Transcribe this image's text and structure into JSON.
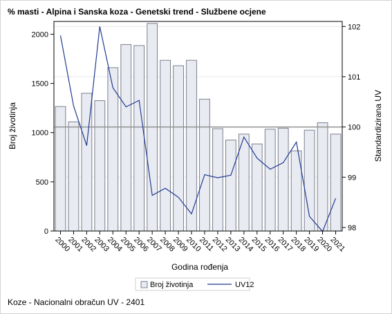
{
  "title": "% masti - Alpina i Sanska koza - Genetski trend - Službene ocjene",
  "footnote": "Koze - Nacionalni obračun UV - 2401",
  "colors": {
    "bar_fill": "#e9ebf2",
    "bar_stroke": "#7c7f8c",
    "line": "#1f3a93",
    "refline": "#909090",
    "grid": "#e6e6e6"
  },
  "chart_data": {
    "type": "bar",
    "categories": [
      "2000",
      "2001",
      "2002",
      "2003",
      "2004",
      "2005",
      "2006",
      "2007",
      "2008",
      "2009",
      "2010",
      "2011",
      "2012",
      "2013",
      "2014",
      "2015",
      "2016",
      "2017",
      "2018",
      "2019",
      "2020",
      "2021"
    ],
    "xlabel": "Godina rođenja",
    "ylabel": "Broj životinja",
    "y2label": "Standardizirana UV",
    "ylim": [
      0,
      2130
    ],
    "yticks": [
      0,
      500,
      1000,
      1500,
      2000
    ],
    "y2lim": [
      97.93,
      102.1
    ],
    "y2ticks": [
      98,
      99,
      100,
      101,
      102
    ],
    "reference_line_y2": 100,
    "series": [
      {
        "name": "Broj životinja",
        "type": "bar",
        "axis": "left",
        "values": [
          1265,
          1110,
          1400,
          1325,
          1660,
          1895,
          1885,
          2110,
          1735,
          1680,
          1735,
          1340,
          1040,
          925,
          985,
          885,
          1035,
          1045,
          815,
          1025,
          1100,
          985
        ]
      },
      {
        "name": "UV12",
        "type": "line",
        "axis": "right",
        "values": [
          101.82,
          100.42,
          99.63,
          102.0,
          100.78,
          100.4,
          100.53,
          98.64,
          98.78,
          98.6,
          98.27,
          99.05,
          98.99,
          99.04,
          99.8,
          99.38,
          99.16,
          99.29,
          99.7,
          98.22,
          97.92,
          98.58
        ]
      }
    ],
    "legend": {
      "position": "bottom",
      "entries": [
        "Broj životinja",
        "UV12"
      ]
    },
    "grid": true
  }
}
